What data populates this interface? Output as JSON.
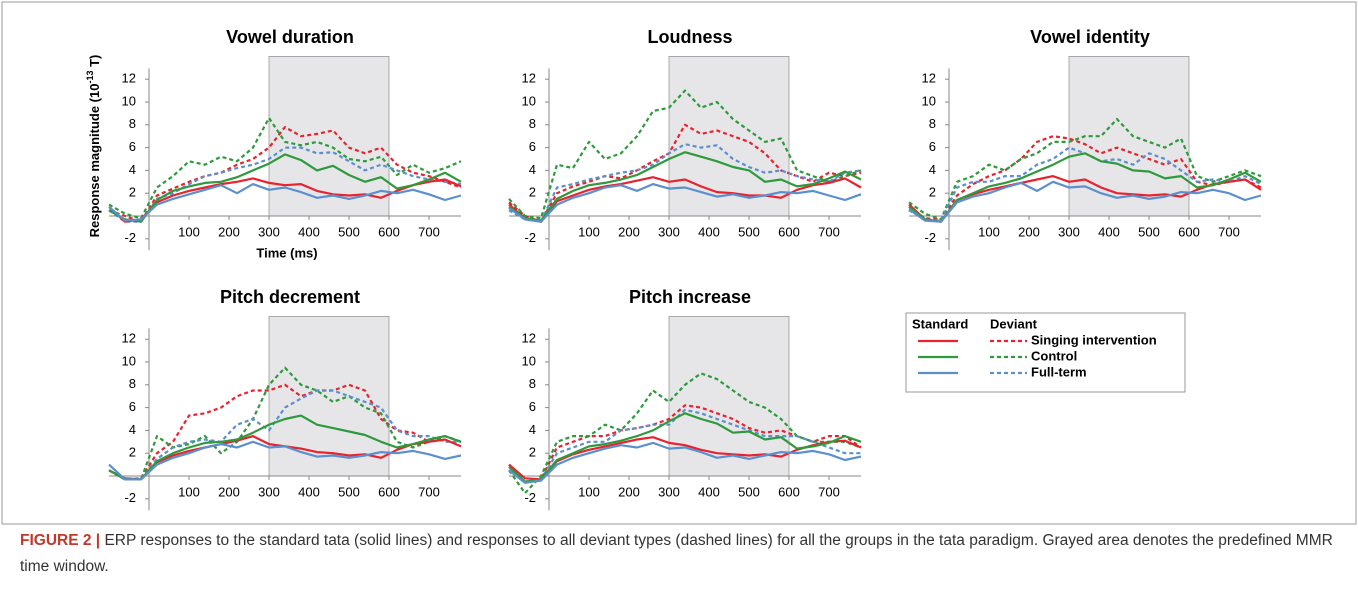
{
  "chart_data": [
    {
      "type": "line",
      "title": "Vowel duration",
      "ylabel": "Response magnitude (10",
      "ylabel_sup": "-13",
      "ylabel_end": " T)",
      "xlabel": "Time (ms)",
      "x": [
        -100,
        -60,
        -20,
        20,
        60,
        100,
        140,
        180,
        220,
        260,
        300,
        340,
        380,
        420,
        460,
        500,
        540,
        580,
        620,
        660,
        700,
        740,
        780
      ],
      "xlim": [
        -100,
        780
      ],
      "ylim": [
        -3,
        14
      ],
      "xticks": [
        100,
        200,
        300,
        400,
        500,
        600,
        700
      ],
      "yticks": [
        -2,
        2,
        4,
        6,
        8,
        10,
        12
      ],
      "shaded_x": [
        300,
        600
      ],
      "series": [
        {
          "name": "Singing intervention",
          "color": "#e8232f",
          "values": [
            0.8,
            -0.5,
            -0.3,
            1.2,
            1.8,
            2.2,
            2.5,
            2.8,
            3.0,
            3.3,
            2.9,
            2.7,
            2.8,
            2.2,
            1.9,
            1.8,
            1.9,
            1.6,
            2.2,
            2.7,
            3.0,
            3.2,
            2.6
          ],
          "deviant_values": [
            0.5,
            0.0,
            -0.5,
            1.8,
            2.4,
            3.0,
            3.5,
            3.8,
            4.5,
            5.0,
            6.0,
            7.8,
            7.0,
            7.2,
            7.5,
            6.0,
            5.5,
            6.0,
            4.5,
            3.8,
            3.5,
            3.0,
            2.5
          ]
        },
        {
          "name": "Control",
          "color": "#2e9a3c",
          "values": [
            0.5,
            -0.3,
            -0.5,
            1.4,
            2.2,
            2.6,
            2.9,
            3.0,
            3.4,
            4.0,
            4.6,
            5.4,
            4.9,
            4.0,
            4.4,
            3.6,
            3.0,
            3.4,
            2.4,
            2.7,
            3.2,
            3.8,
            3.0
          ],
          "deviant_values": [
            1.0,
            0.2,
            -0.2,
            2.5,
            3.5,
            4.8,
            4.5,
            5.2,
            4.8,
            6.0,
            8.6,
            6.5,
            6.2,
            6.5,
            6.0,
            5.0,
            4.8,
            5.2,
            3.6,
            4.5,
            3.8,
            4.2,
            4.8
          ]
        },
        {
          "name": "Full-term",
          "color": "#5b8fce",
          "values": [
            0.8,
            -0.4,
            -0.3,
            1.0,
            1.5,
            1.9,
            2.3,
            2.7,
            2.0,
            2.8,
            2.3,
            2.5,
            2.1,
            1.6,
            1.8,
            1.5,
            1.8,
            2.2,
            2.0,
            2.3,
            1.9,
            1.4,
            1.8
          ],
          "deviant_values": [
            0.5,
            -0.5,
            -0.5,
            1.5,
            2.0,
            2.8,
            3.5,
            3.8,
            4.2,
            4.5,
            5.0,
            6.0,
            6.0,
            5.5,
            5.6,
            4.8,
            4.0,
            4.5,
            4.0,
            3.5,
            3.2,
            3.0,
            2.8
          ]
        }
      ]
    },
    {
      "type": "line",
      "title": "Loudness",
      "x": [
        -100,
        -60,
        -20,
        20,
        60,
        100,
        140,
        180,
        220,
        260,
        300,
        340,
        380,
        420,
        460,
        500,
        540,
        580,
        620,
        660,
        700,
        740,
        780
      ],
      "xlim": [
        -100,
        780
      ],
      "ylim": [
        -3,
        14
      ],
      "xticks": [
        100,
        200,
        300,
        400,
        500,
        600,
        700
      ],
      "yticks": [
        -2,
        2,
        4,
        6,
        8,
        10,
        12
      ],
      "shaded_x": [
        300,
        600
      ],
      "series": [
        {
          "name": "Singing intervention",
          "color": "#e8232f",
          "values": [
            1.0,
            -0.2,
            -0.5,
            1.3,
            1.8,
            2.3,
            2.6,
            2.8,
            3.1,
            3.4,
            3.0,
            3.2,
            2.6,
            2.1,
            2.0,
            1.8,
            1.8,
            1.6,
            2.3,
            2.7,
            2.9,
            3.3,
            2.5
          ],
          "deviant_values": [
            1.2,
            0.0,
            -0.5,
            2.0,
            2.6,
            3.0,
            3.5,
            3.3,
            4.0,
            4.8,
            5.5,
            8.0,
            7.2,
            7.5,
            7.0,
            6.5,
            5.5,
            4.0,
            3.5,
            3.0,
            3.8,
            3.5,
            3.8
          ]
        },
        {
          "name": "Control",
          "color": "#2e9a3c",
          "values": [
            0.8,
            -0.2,
            -0.4,
            1.5,
            2.2,
            2.7,
            2.9,
            3.2,
            3.6,
            4.3,
            5.0,
            5.6,
            5.2,
            4.8,
            4.3,
            4.0,
            3.0,
            3.2,
            2.6,
            2.8,
            3.3,
            3.9,
            3.2
          ],
          "deviant_values": [
            1.5,
            0.0,
            -0.2,
            4.5,
            4.2,
            6.5,
            5.0,
            5.5,
            7.0,
            9.2,
            9.5,
            11.0,
            9.5,
            10.0,
            8.5,
            7.5,
            6.5,
            6.8,
            4.0,
            3.5,
            3.0,
            3.5,
            4.0
          ]
        },
        {
          "name": "Full-term",
          "color": "#5b8fce",
          "values": [
            0.7,
            -0.3,
            -0.5,
            1.0,
            1.6,
            2.0,
            2.5,
            2.7,
            2.2,
            2.8,
            2.4,
            2.5,
            2.1,
            1.7,
            1.9,
            1.6,
            1.8,
            2.1,
            2.0,
            2.2,
            1.8,
            1.4,
            1.9
          ],
          "deviant_values": [
            0.5,
            -0.3,
            -0.5,
            2.5,
            2.8,
            3.2,
            3.5,
            3.8,
            4.0,
            4.5,
            5.5,
            6.3,
            6.0,
            6.2,
            5.0,
            4.3,
            3.8,
            4.0,
            3.5,
            3.2,
            3.0,
            3.8,
            4.0
          ]
        }
      ]
    },
    {
      "type": "line",
      "title": "Vowel identity",
      "x": [
        -100,
        -60,
        -20,
        20,
        60,
        100,
        140,
        180,
        220,
        260,
        300,
        340,
        380,
        420,
        460,
        500,
        540,
        580,
        620,
        660,
        700,
        740,
        780
      ],
      "xlim": [
        -100,
        780
      ],
      "ylim": [
        -3,
        14
      ],
      "xticks": [
        100,
        200,
        300,
        400,
        500,
        600,
        700
      ],
      "yticks": [
        -2,
        2,
        4,
        6,
        8,
        10,
        12
      ],
      "shaded_x": [
        300,
        600
      ],
      "series": [
        {
          "name": "Singing intervention",
          "color": "#e8232f",
          "values": [
            1.0,
            -0.3,
            -0.5,
            1.4,
            1.9,
            2.3,
            2.6,
            2.9,
            3.2,
            3.5,
            3.0,
            3.2,
            2.5,
            2.0,
            1.9,
            1.8,
            1.9,
            1.7,
            2.3,
            2.8,
            3.0,
            3.2,
            2.3
          ],
          "deviant_values": [
            0.8,
            -0.2,
            -0.3,
            1.8,
            2.8,
            3.5,
            4.0,
            5.0,
            6.5,
            7.0,
            6.8,
            6.3,
            5.5,
            6.0,
            5.5,
            5.0,
            4.5,
            5.0,
            3.0,
            2.7,
            3.0,
            3.2,
            2.5
          ]
        },
        {
          "name": "Control",
          "color": "#2e9a3c",
          "values": [
            0.8,
            -0.3,
            -0.5,
            1.4,
            2.0,
            2.6,
            2.9,
            3.3,
            3.9,
            4.5,
            5.2,
            5.5,
            4.8,
            4.6,
            4.0,
            3.9,
            3.3,
            3.5,
            2.5,
            2.7,
            3.2,
            3.8,
            3.0
          ],
          "deviant_values": [
            1.2,
            0.2,
            -0.3,
            3.0,
            3.5,
            4.5,
            4.0,
            5.0,
            5.5,
            6.5,
            6.5,
            7.0,
            7.0,
            8.5,
            7.0,
            6.5,
            6.0,
            6.8,
            3.5,
            3.0,
            3.5,
            4.0,
            3.5
          ]
        },
        {
          "name": "Full-term",
          "color": "#5b8fce",
          "values": [
            0.6,
            -0.4,
            -0.5,
            1.2,
            1.7,
            2.0,
            2.5,
            2.9,
            2.2,
            3.0,
            2.5,
            2.6,
            2.0,
            1.6,
            1.8,
            1.5,
            1.7,
            2.1,
            2.0,
            2.3,
            2.0,
            1.4,
            1.8
          ],
          "deviant_values": [
            0.5,
            -0.3,
            -0.4,
            2.5,
            3.0,
            3.0,
            3.5,
            3.5,
            4.5,
            5.0,
            6.0,
            5.5,
            4.8,
            5.0,
            4.5,
            5.5,
            5.0,
            4.0,
            3.0,
            3.2,
            3.0,
            3.5,
            2.8
          ]
        }
      ]
    },
    {
      "type": "line",
      "title": "Pitch decrement",
      "x": [
        -100,
        -60,
        -20,
        20,
        60,
        100,
        140,
        180,
        220,
        260,
        300,
        340,
        380,
        420,
        460,
        500,
        540,
        580,
        620,
        660,
        700,
        740,
        780
      ],
      "xlim": [
        -100,
        780
      ],
      "ylim": [
        -3,
        14
      ],
      "xticks": [
        100,
        200,
        300,
        400,
        500,
        600,
        700
      ],
      "yticks": [
        -2,
        2,
        4,
        6,
        8,
        10,
        12
      ],
      "shaded_x": [
        300,
        600
      ],
      "series": [
        {
          "name": "Singing intervention",
          "color": "#e8232f",
          "values": [
            0.5,
            -0.2,
            -0.3,
            1.2,
            1.8,
            2.2,
            2.5,
            2.8,
            3.1,
            3.5,
            2.8,
            2.6,
            2.4,
            2.1,
            2.0,
            1.8,
            1.9,
            1.6,
            2.3,
            2.8,
            3.0,
            3.2,
            2.6
          ],
          "deviant_values": [
            0.5,
            -0.3,
            -0.2,
            2.0,
            3.0,
            5.3,
            5.5,
            6.0,
            7.0,
            7.5,
            7.5,
            8.0,
            7.0,
            7.5,
            7.5,
            8.0,
            7.5,
            5.0,
            4.0,
            3.8,
            3.0,
            3.5,
            3.0
          ]
        },
        {
          "name": "Control",
          "color": "#2e9a3c",
          "values": [
            0.5,
            -0.3,
            -0.3,
            1.3,
            2.0,
            2.5,
            2.9,
            3.0,
            3.2,
            3.8,
            4.5,
            5.0,
            5.3,
            4.5,
            4.2,
            3.9,
            3.6,
            3.0,
            2.5,
            2.8,
            3.2,
            3.5,
            3.0
          ],
          "deviant_values": [
            0.5,
            -0.2,
            -0.3,
            3.5,
            2.5,
            2.8,
            3.5,
            2.0,
            3.0,
            5.0,
            8.0,
            9.5,
            8.0,
            7.5,
            6.5,
            7.0,
            6.0,
            5.5,
            3.0,
            2.5,
            3.0,
            3.5,
            3.0
          ]
        },
        {
          "name": "Full-term",
          "color": "#5b8fce",
          "values": [
            1.0,
            -0.3,
            -0.3,
            1.0,
            1.6,
            2.0,
            2.5,
            2.8,
            2.5,
            3.0,
            2.5,
            2.6,
            2.1,
            1.7,
            1.8,
            1.6,
            1.8,
            2.1,
            2.0,
            2.2,
            1.9,
            1.5,
            1.8
          ],
          "deviant_values": [
            0.5,
            -0.3,
            -0.3,
            1.5,
            2.5,
            3.0,
            3.2,
            3.0,
            4.5,
            5.0,
            4.0,
            6.0,
            6.8,
            7.5,
            7.5,
            7.0,
            6.5,
            6.0,
            4.0,
            3.5,
            3.5,
            3.0,
            3.0
          ]
        }
      ]
    },
    {
      "type": "line",
      "title": "Pitch increase",
      "x": [
        -100,
        -60,
        -20,
        20,
        60,
        100,
        140,
        180,
        220,
        260,
        300,
        340,
        380,
        420,
        460,
        500,
        540,
        580,
        620,
        660,
        700,
        740,
        780
      ],
      "xlim": [
        -100,
        780
      ],
      "ylim": [
        -3,
        14
      ],
      "xticks": [
        100,
        200,
        300,
        400,
        500,
        600,
        700
      ],
      "yticks": [
        -2,
        2,
        4,
        6,
        8,
        10,
        12
      ],
      "shaded_x": [
        300,
        600
      ],
      "series": [
        {
          "name": "Singing intervention",
          "color": "#e8232f",
          "values": [
            1.0,
            -0.2,
            -0.3,
            1.3,
            1.9,
            2.3,
            2.6,
            2.9,
            3.2,
            3.4,
            2.9,
            2.7,
            2.3,
            2.0,
            1.9,
            1.8,
            1.9,
            1.7,
            2.3,
            2.7,
            3.0,
            3.1,
            2.5
          ],
          "deviant_values": [
            1.0,
            -0.5,
            -0.3,
            2.5,
            3.0,
            3.5,
            3.5,
            4.0,
            4.2,
            4.5,
            5.0,
            6.2,
            6.0,
            5.5,
            5.0,
            4.2,
            3.8,
            4.0,
            3.5,
            3.0,
            3.5,
            3.5,
            2.5
          ]
        },
        {
          "name": "Control",
          "color": "#2e9a3c",
          "values": [
            0.8,
            -0.5,
            -0.3,
            1.4,
            2.0,
            2.6,
            2.8,
            3.1,
            3.5,
            4.0,
            4.8,
            5.5,
            5.0,
            4.6,
            3.8,
            3.9,
            3.2,
            3.4,
            2.4,
            2.6,
            2.9,
            3.5,
            3.0
          ],
          "deviant_values": [
            0.5,
            -1.5,
            0.0,
            3.0,
            3.5,
            3.5,
            4.5,
            4.0,
            5.5,
            7.5,
            6.5,
            8.0,
            9.0,
            8.5,
            7.5,
            6.5,
            6.0,
            5.0,
            3.5,
            3.0,
            3.0,
            3.0,
            2.5
          ]
        },
        {
          "name": "Full-term",
          "color": "#5b8fce",
          "values": [
            0.5,
            -0.6,
            -0.4,
            1.0,
            1.6,
            2.0,
            2.4,
            2.7,
            2.5,
            2.9,
            2.4,
            2.5,
            2.1,
            1.6,
            1.8,
            1.5,
            1.8,
            2.1,
            2.0,
            2.2,
            1.9,
            1.4,
            1.7
          ],
          "deviant_values": [
            0.5,
            -0.5,
            -0.3,
            2.0,
            2.5,
            3.0,
            3.0,
            4.0,
            4.2,
            4.5,
            4.5,
            5.8,
            5.5,
            5.0,
            4.5,
            4.0,
            3.5,
            3.5,
            3.5,
            3.0,
            2.5,
            2.0,
            2.0
          ]
        }
      ]
    }
  ],
  "legend_headers": {
    "solid": "Standard",
    "dashed": "Deviant"
  },
  "figure_caption": {
    "label": "FIGURE 2 |",
    "text": "ERP responses to the standard tata (solid lines) and responses to all deviant types (dashed lines) for all the groups in the tata paradigm. Grayed area denotes the predefined MMR time window."
  }
}
